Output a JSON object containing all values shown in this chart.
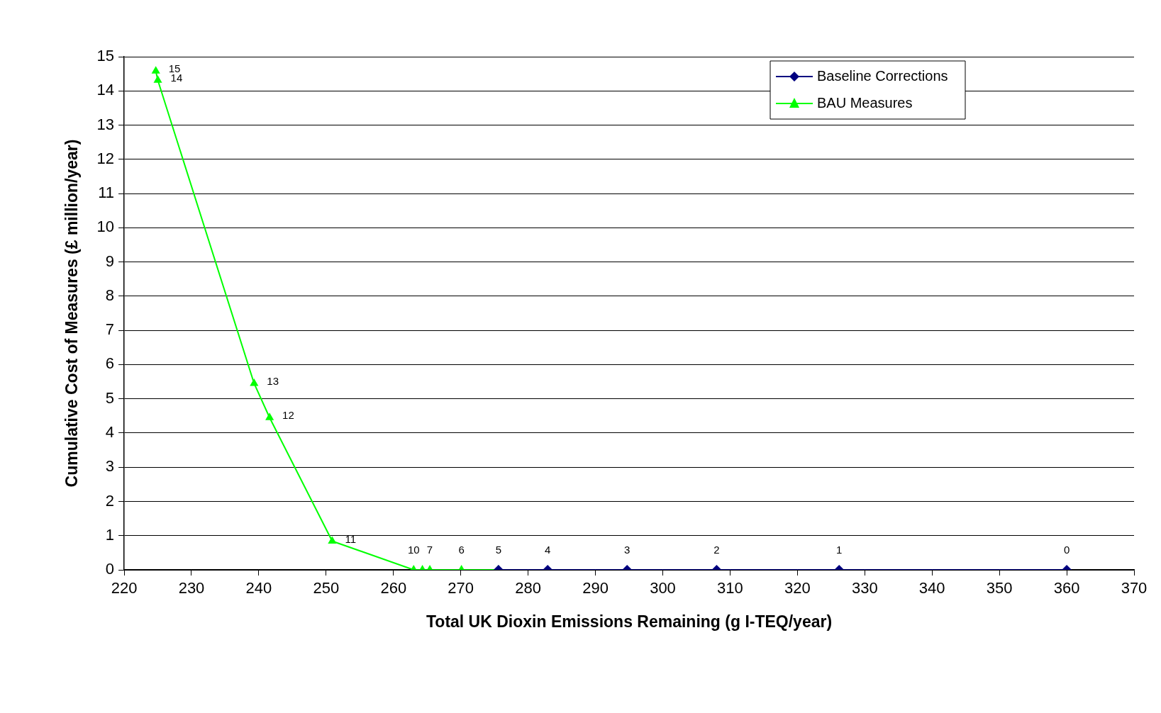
{
  "chart_data": {
    "type": "line",
    "xlabel": "Total UK Dioxin Emissions Remaining (g I-TEQ/year)",
    "ylabel": "Cumulative Cost of Measures (£ million/year)",
    "xlim": [
      220,
      370
    ],
    "xticks": [
      220,
      230,
      240,
      250,
      260,
      270,
      280,
      290,
      300,
      310,
      320,
      330,
      340,
      350,
      360,
      370
    ],
    "ylim": [
      0,
      15
    ],
    "yticks": [
      0,
      1,
      2,
      3,
      4,
      5,
      6,
      7,
      8,
      9,
      10,
      11,
      12,
      13,
      14,
      15
    ],
    "grid": "y",
    "legend": "top right",
    "series": [
      {
        "name": "Baseline Corrections",
        "color": "#000080",
        "marker": "diamond",
        "x": [
          360,
          326.2,
          308,
          294.7,
          282.9,
          275.6
        ],
        "values": [
          0,
          0,
          0,
          0,
          0,
          0
        ]
      },
      {
        "name": "BAU Measures",
        "color": "#00ff00",
        "marker": "triangle",
        "x": [
          275.6,
          270.1,
          265.4,
          264.3,
          263,
          250.9,
          241.6,
          239.3,
          225,
          224.7
        ],
        "values": [
          0,
          0,
          0,
          0,
          0,
          0.84,
          4.45,
          5.45,
          14.31,
          14.58
        ]
      }
    ],
    "annotations": [
      {
        "text": "0",
        "x": 360,
        "y": 0
      },
      {
        "text": "1",
        "x": 326.2,
        "y": 0
      },
      {
        "text": "2",
        "x": 308,
        "y": 0
      },
      {
        "text": "3",
        "x": 294.7,
        "y": 0
      },
      {
        "text": "4",
        "x": 282.9,
        "y": 0
      },
      {
        "text": "5",
        "x": 275.6,
        "y": 0
      },
      {
        "text": "6",
        "x": 270.1,
        "y": 0
      },
      {
        "text": "7",
        "x": 265.4,
        "y": 0
      },
      {
        "text": "10",
        "x": 263,
        "y": 0
      },
      {
        "text": "11",
        "x": 250.9,
        "y": 0.84
      },
      {
        "text": "12",
        "x": 241.6,
        "y": 4.45
      },
      {
        "text": "13",
        "x": 239.3,
        "y": 5.45
      },
      {
        "text": "14",
        "x": 225,
        "y": 14.31
      },
      {
        "text": "15",
        "x": 224.7,
        "y": 14.58
      }
    ]
  }
}
